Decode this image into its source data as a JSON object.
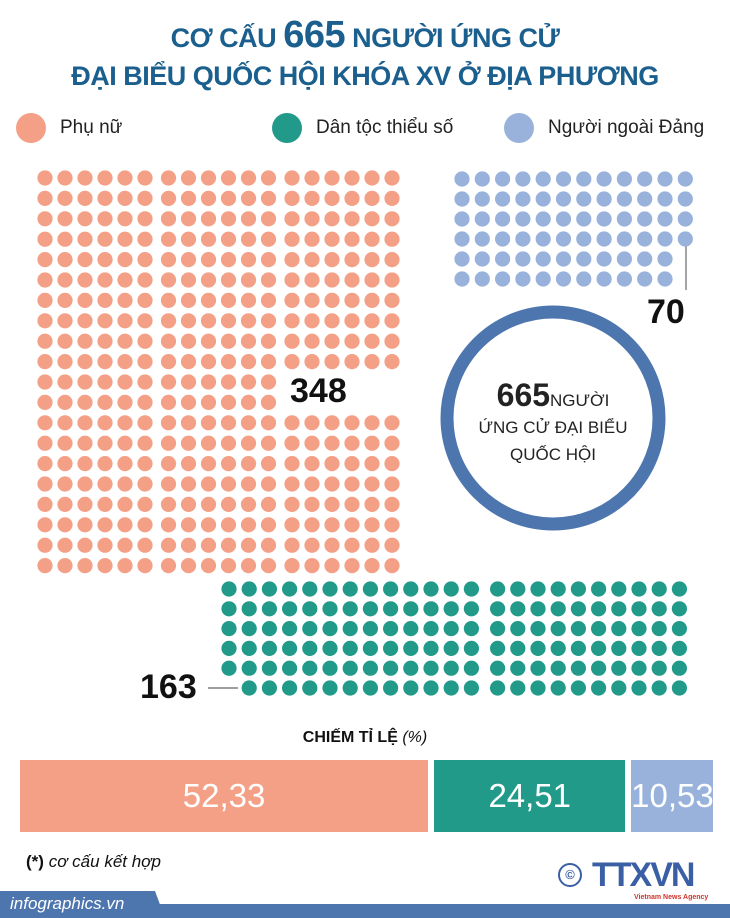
{
  "header": {
    "title_line1_prefix": "CƠ CẤU",
    "title_line1_number": "665",
    "title_line1_suffix": "NGƯỜI ỨNG CỬ",
    "title_line2": "ĐẠI BIỂU QUỐC HỘI KHÓA XV Ở ĐỊA PHƯƠNG"
  },
  "legend": [
    {
      "label": "Phụ nữ",
      "color": "#f4a086"
    },
    {
      "label": "Dân tộc thiểu số",
      "color": "#229a8a"
    },
    {
      "label": "Người ngoài Đảng",
      "color": "#98b2db"
    }
  ],
  "center": {
    "total": "665",
    "unit": "NGƯỜI",
    "line2": "ỨNG CỬ ĐẠI BIỂU",
    "line3": "QUỐC HỘI",
    "ring_color": "#4e76ae"
  },
  "chart_data": {
    "type": "pictogram",
    "total": 665,
    "series": [
      {
        "name": "Phụ nữ",
        "count": 348,
        "count_label": "348",
        "percent": 52.33,
        "percent_label": "52,33",
        "color": "#f4a086"
      },
      {
        "name": "Dân tộc thiểu số",
        "count": 163,
        "count_label": "163",
        "percent": 24.51,
        "percent_label": "24,51",
        "color": "#229a8a"
      },
      {
        "name": "Người ngoài Đảng",
        "count": 70,
        "count_label": "70",
        "percent": 10.53,
        "percent_label": "10,53",
        "color": "#98b2db"
      }
    ],
    "ratio_title": "CHIẾM TỈ LỆ",
    "ratio_unit": "(%)"
  },
  "footnote": {
    "mark": "(*)",
    "text": "cơ cấu kết hợp"
  },
  "footer": {
    "site": "infographics.vn",
    "logo_text": "TTXVN",
    "logo_sub": "Vietnam News Agency",
    "copyright": "©"
  }
}
